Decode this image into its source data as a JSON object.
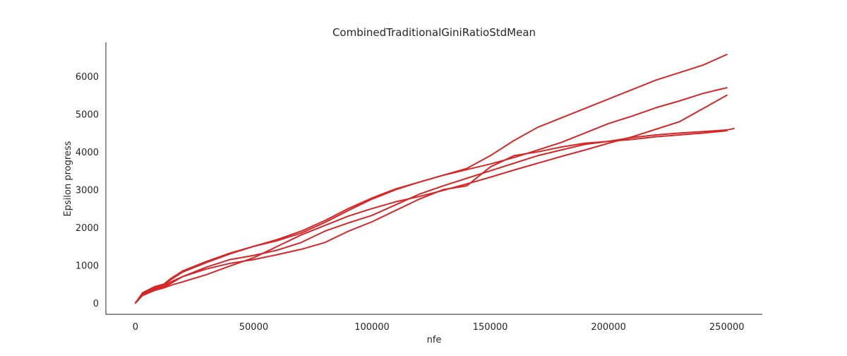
{
  "chart_data": {
    "type": "line",
    "title": "CombinedTraditionalGiniRatioStdMean",
    "xlabel": "nfe",
    "ylabel": "Epsilon progress",
    "xlim": [
      -12500,
      265000
    ],
    "ylim": [
      -300,
      6900
    ],
    "x_ticks": [
      0,
      50000,
      100000,
      150000,
      200000,
      250000
    ],
    "x_tick_labels": [
      "0",
      "50000",
      "100000",
      "150000",
      "200000",
      "250000"
    ],
    "y_ticks": [
      0,
      1000,
      2000,
      3000,
      4000,
      5000,
      6000
    ],
    "y_tick_labels": [
      "0",
      "1000",
      "2000",
      "3000",
      "4000",
      "5000",
      "6000"
    ],
    "grid": false,
    "line_color": "#d62728",
    "series": [
      {
        "x": [
          0,
          3000,
          8000,
          12000,
          15000,
          20000,
          30000,
          40000,
          50000,
          60000,
          70000,
          80000,
          90000,
          100000,
          110000,
          120000,
          130000,
          140000,
          150000,
          160000,
          170000,
          180000,
          190000,
          200000,
          210000,
          220000,
          230000,
          240000,
          250000
        ],
        "y": [
          0,
          250,
          400,
          480,
          620,
          820,
          1070,
          1300,
          1500,
          1680,
          1900,
          2180,
          2500,
          2780,
          3020,
          3200,
          3380,
          3560,
          3900,
          4300,
          4650,
          4900,
          5150,
          5400,
          5650,
          5900,
          6100,
          6300,
          6580
        ]
      },
      {
        "x": [
          0,
          3000,
          8000,
          12000,
          15000,
          20000,
          30000,
          40000,
          50000,
          60000,
          70000,
          80000,
          90000,
          100000,
          110000,
          120000,
          130000,
          140000,
          150000,
          160000,
          170000,
          180000,
          190000,
          200000,
          210000,
          220000,
          230000,
          240000,
          250000
        ],
        "y": [
          0,
          270,
          430,
          500,
          650,
          850,
          1100,
          1320,
          1500,
          1650,
          1850,
          2130,
          2450,
          2750,
          3000,
          3200,
          3380,
          3530,
          3680,
          3850,
          4050,
          4250,
          4500,
          4750,
          4950,
          5170,
          5350,
          5550,
          5700
        ]
      },
      {
        "x": [
          0,
          3000,
          8000,
          12000,
          15000,
          20000,
          30000,
          40000,
          50000,
          60000,
          70000,
          80000,
          90000,
          100000,
          110000,
          120000,
          130000,
          140000,
          150000,
          160000,
          170000,
          180000,
          190000,
          200000,
          210000,
          220000,
          230000,
          240000,
          250000
        ],
        "y": [
          0,
          220,
          380,
          460,
          560,
          700,
          900,
          1050,
          1150,
          1280,
          1420,
          1600,
          1900,
          2150,
          2450,
          2750,
          3000,
          3100,
          3600,
          3900,
          4000,
          4130,
          4230,
          4280,
          4330,
          4400,
          4450,
          4500,
          4560
        ]
      },
      {
        "x": [
          0,
          3000,
          8000,
          12000,
          15000,
          20000,
          30000,
          40000,
          50000,
          60000,
          70000,
          80000,
          90000,
          100000,
          110000,
          120000,
          130000,
          140000,
          150000,
          160000,
          170000,
          180000,
          190000,
          200000,
          210000,
          220000,
          230000,
          240000,
          250000
        ],
        "y": [
          0,
          200,
          330,
          400,
          470,
          560,
          750,
          980,
          1200,
          1500,
          1800,
          2050,
          2300,
          2500,
          2680,
          2820,
          2980,
          3150,
          3330,
          3520,
          3700,
          3880,
          4050,
          4230,
          4400,
          4600,
          4800,
          5150,
          5500
        ]
      },
      {
        "x": [
          0,
          3000,
          8000,
          12000,
          15000,
          20000,
          30000,
          40000,
          50000,
          60000,
          70000,
          80000,
          90000,
          100000,
          110000,
          120000,
          130000,
          140000,
          150000,
          160000,
          170000,
          180000,
          190000,
          200000,
          210000,
          220000,
          230000,
          240000,
          250000,
          253000
        ],
        "y": [
          0,
          240,
          360,
          420,
          520,
          700,
          950,
          1150,
          1260,
          1400,
          1600,
          1900,
          2120,
          2320,
          2600,
          2880,
          3100,
          3300,
          3500,
          3700,
          3900,
          4050,
          4200,
          4280,
          4380,
          4450,
          4500,
          4540,
          4580,
          4620
        ]
      }
    ]
  }
}
